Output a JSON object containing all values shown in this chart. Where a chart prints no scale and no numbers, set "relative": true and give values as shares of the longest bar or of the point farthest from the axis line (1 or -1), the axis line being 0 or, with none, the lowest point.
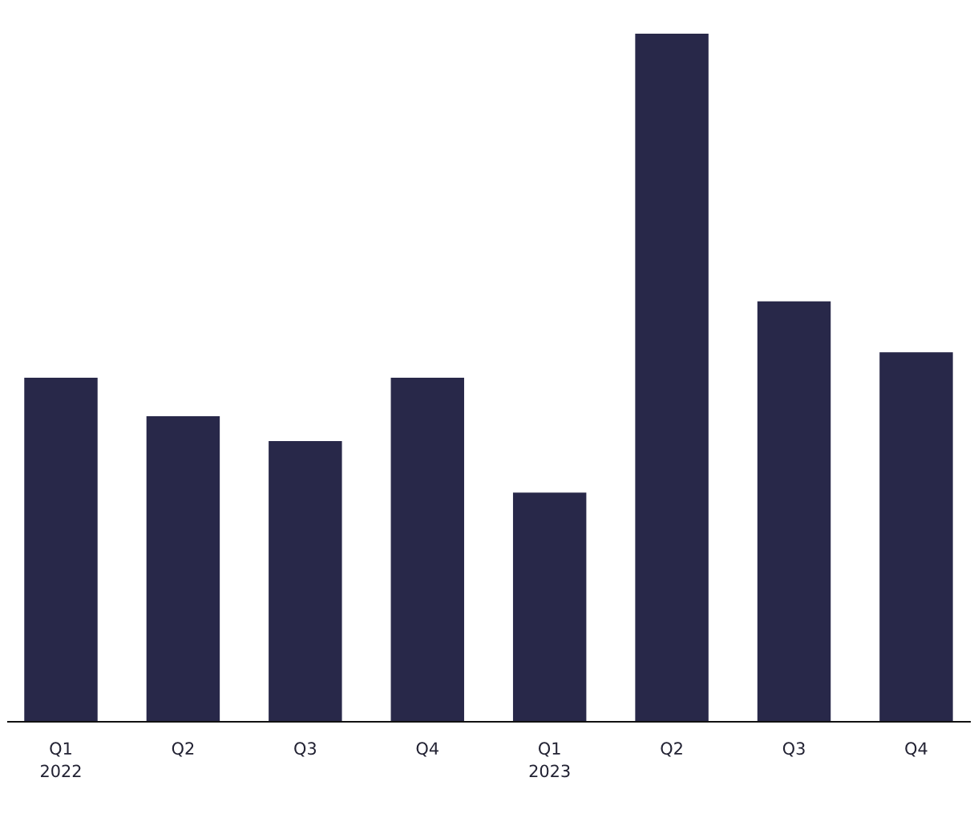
{
  "chart_data": {
    "type": "bar",
    "relative": true,
    "color": "#282849",
    "grid": false,
    "legend": false,
    "categories": [
      "Q1\n2022",
      "Q2",
      "Q3",
      "Q4",
      "Q1\n2023",
      "Q2",
      "Q3",
      "Q4"
    ],
    "values": [
      0.5,
      0.444,
      0.408,
      0.5,
      0.333,
      1,
      0.611,
      0.537
    ]
  }
}
